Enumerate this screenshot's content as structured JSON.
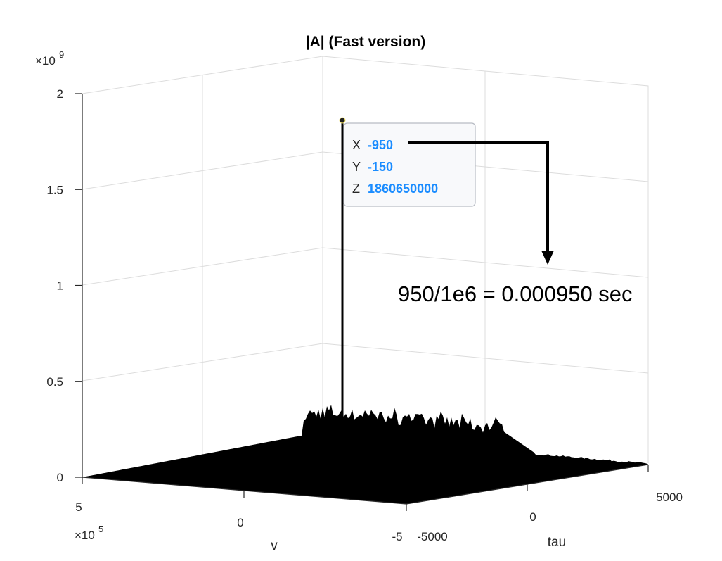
{
  "chart_data": {
    "type": "surface",
    "title": "|A| (Fast version)",
    "z_exponent_label": "×10",
    "z_exponent": "9",
    "v_exponent_label": "×10",
    "v_exponent": "5",
    "z_ticks": [
      "0",
      "0.5",
      "1",
      "1.5",
      "2"
    ],
    "z_tick_values": [
      0,
      0.5,
      1,
      1.5,
      2
    ],
    "zlim": [
      0,
      2
    ],
    "v_ticks": [
      "5",
      "0",
      "-5"
    ],
    "tau_ticks": [
      "-5000",
      "0",
      "5000"
    ],
    "xlabel": "v",
    "ylabel": "tau",
    "grid": true,
    "peak": {
      "tau": -950,
      "v": -150,
      "z": 1860650000
    },
    "base_noise_level": 0.07,
    "plateau_level": 0.3,
    "surface_color": "#000000"
  },
  "datatip": {
    "x_key": "X",
    "x_val": "-950",
    "y_key": "Y",
    "y_val": "-150",
    "z_key": "Z",
    "z_val": "1860650000",
    "value_color": "#1a8cff"
  },
  "annotation": {
    "text": "950/1e6 = 0.000950 sec"
  }
}
